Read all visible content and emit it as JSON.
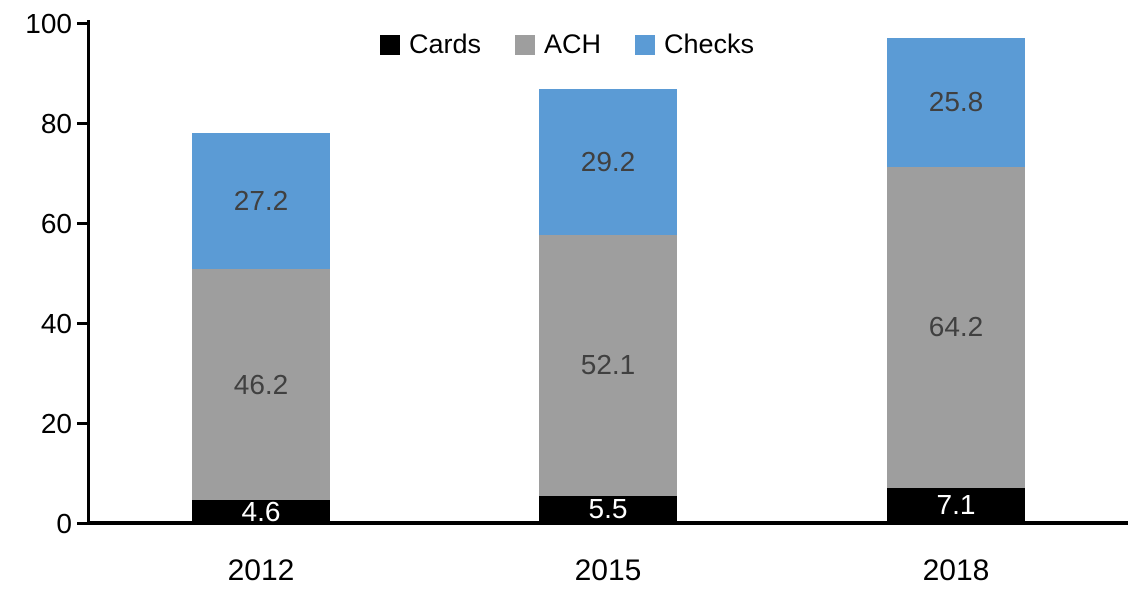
{
  "chart_data": {
    "type": "bar",
    "stacked": true,
    "title": "",
    "xlabel": "",
    "ylabel": "",
    "categories": [
      "2012",
      "2015",
      "2018"
    ],
    "series": [
      {
        "name": "Cards",
        "color": "#000000",
        "label_color": "#ffffff",
        "values": [
          4.6,
          5.5,
          7.1
        ]
      },
      {
        "name": "ACH",
        "color": "#9e9e9e",
        "label_color": "#404040",
        "values": [
          46.2,
          52.1,
          64.2
        ]
      },
      {
        "name": "Checks",
        "color": "#5b9bd5",
        "label_color": "#404040",
        "values": [
          27.2,
          29.2,
          25.8
        ]
      }
    ],
    "totals": [
      78.0,
      86.8,
      97.1
    ],
    "ylim": [
      0,
      100
    ],
    "yticks": [
      0,
      20,
      40,
      60,
      80,
      100
    ],
    "grid": false,
    "data_labels": true,
    "legend_position": "top-center",
    "axis_color": "#000000",
    "background_color": "#ffffff"
  }
}
